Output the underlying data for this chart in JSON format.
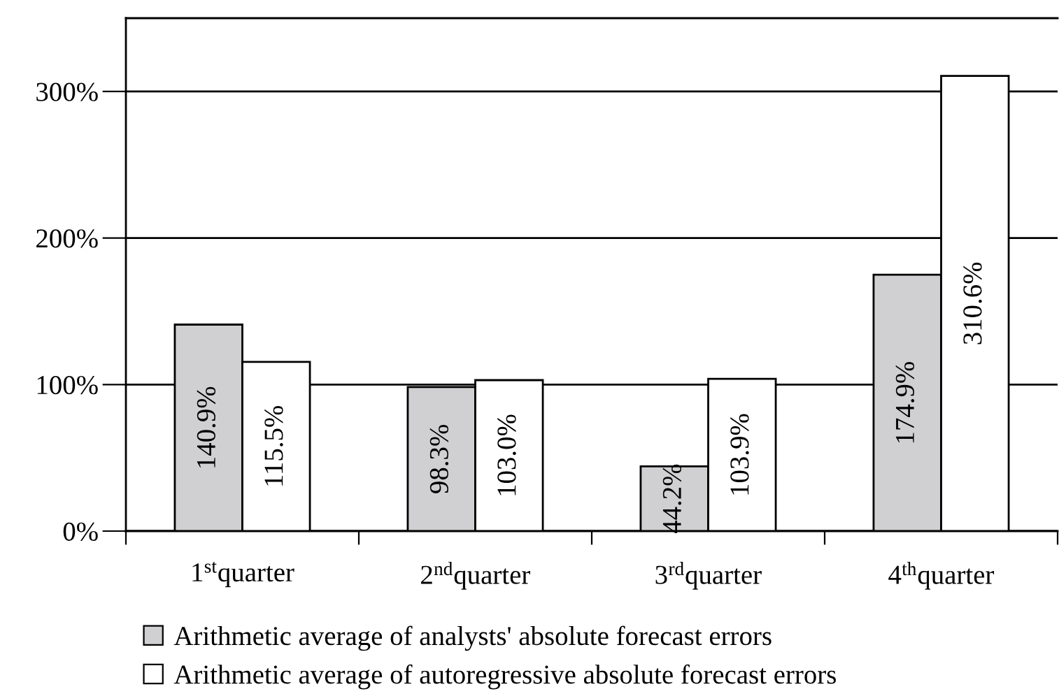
{
  "chart_data": {
    "type": "bar",
    "categories": [
      "1$^{st}$quarter",
      "2$^{nd}$quarter",
      "3$^{rd}$quarter",
      "4$^{th}$quarter"
    ],
    "series": [
      {
        "name": "Arithmetic average of analysts' absolute forecast errors",
        "color": "#d0d0d2",
        "values": [
          140.9,
          98.3,
          44.2,
          174.9
        ],
        "value_labels": [
          "140.9%",
          "98.3%",
          "44.2%",
          "174.9%"
        ]
      },
      {
        "name": "Arithmetic average of autoregressive absolute forecast errors",
        "color": "#ffffff",
        "values": [
          115.5,
          103.0,
          103.9,
          310.6
        ],
        "value_labels": [
          "115.5%",
          "103.0%",
          "103.9%",
          "310.6%"
        ]
      }
    ],
    "ylim": [
      0,
      350
    ],
    "yticks": [
      {
        "value": 0,
        "label": "0%"
      },
      {
        "value": 100,
        "label": "100%"
      },
      {
        "value": 200,
        "label": "200%"
      },
      {
        "value": 300,
        "label": "300%"
      }
    ],
    "grid": "y",
    "legend": "bottom"
  }
}
